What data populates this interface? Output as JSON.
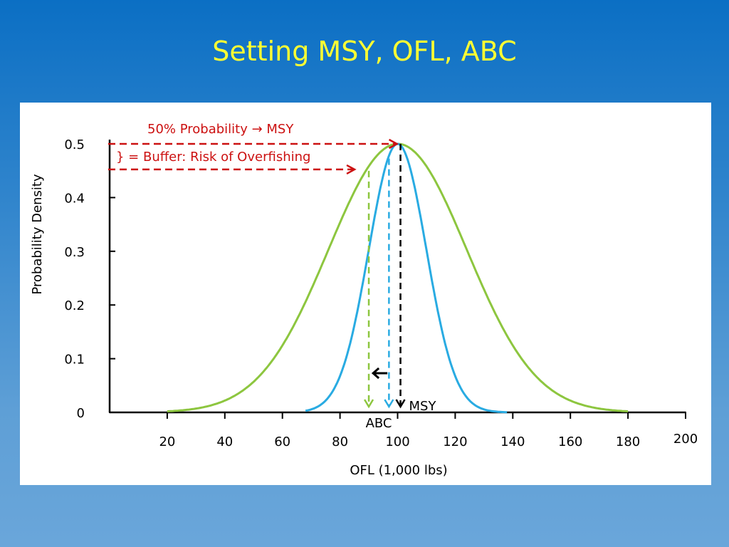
{
  "slide": {
    "title": "Setting MSY, OFL, ABC"
  },
  "colors": {
    "wide_curve": "#8dc63f",
    "narrow_curve": "#29abe2",
    "annotation_red": "#cc1111",
    "axis": "#000000",
    "background_top": "#0b6fc4",
    "background_bottom": "#6aa6da",
    "title": "#ffff33"
  },
  "chart_data": {
    "type": "line",
    "title": "",
    "xlabel": "OFL (1,000 lbs)",
    "ylabel": "Probability Density",
    "xlim": [
      0,
      200
    ],
    "ylim": [
      0,
      0.5
    ],
    "x_ticks": [
      20,
      40,
      60,
      80,
      100,
      120,
      140,
      160,
      180,
      200
    ],
    "y_ticks": [
      0,
      0.1,
      0.2,
      0.3,
      0.4,
      0.5
    ],
    "grid": false,
    "series": [
      {
        "name": "Wide OFL distribution",
        "color": "#8dc63f",
        "mean": 100,
        "sd": 24,
        "peak": 0.5,
        "x_range": [
          20,
          180
        ]
      },
      {
        "name": "Narrow OFL distribution",
        "color": "#29abe2",
        "mean": 100,
        "sd": 10,
        "peak": 0.5,
        "x_range": [
          68,
          138
        ]
      }
    ],
    "markers": [
      {
        "name": "MSY",
        "x": 101,
        "color": "#000000",
        "label": "MSY"
      },
      {
        "name": "ABC (wide)",
        "x": 90,
        "color": "#8dc63f",
        "label": "ABC"
      },
      {
        "name": "ABC (narrow)",
        "x": 97,
        "color": "#29abe2",
        "label": ""
      }
    ],
    "annotations": {
      "probability_label": "50% Probability → MSY",
      "probability_level": 0.5,
      "buffer_label": "} = Buffer: Risk of Overfishing",
      "buffer_level": 0.455
    }
  }
}
